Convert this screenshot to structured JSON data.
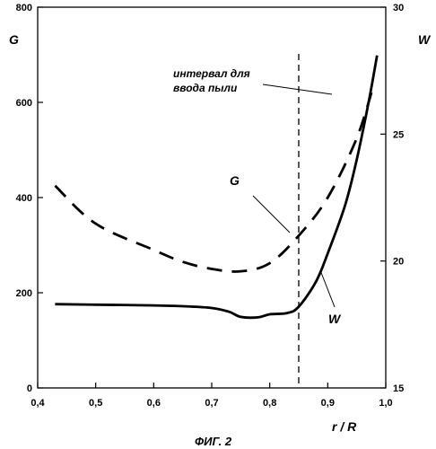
{
  "chart_data": {
    "type": "line",
    "caption": "ФИГ. 2",
    "xlabel": "r / R",
    "y_left_label": "G",
    "y_right_label": "W",
    "xlim": [
      0.4,
      1.0
    ],
    "y_left_lim": [
      0,
      800
    ],
    "y_right_lim": [
      15,
      30
    ],
    "x_ticks": [
      "0,4",
      "0,5",
      "0,6",
      "0,7",
      "0,8",
      "0,9",
      "1,0"
    ],
    "y_left_ticks": [
      "0",
      "200",
      "400",
      "600",
      "800"
    ],
    "y_right_ticks": [
      "15",
      "20",
      "25",
      "30"
    ],
    "grid": false,
    "vertical_line_x": 0.85,
    "annotation": [
      "интервал для",
      "ввода пыли"
    ],
    "series": [
      {
        "name": "G",
        "axis": "left",
        "style": "dashed",
        "x": [
          0.43,
          0.5,
          0.6,
          0.65,
          0.7,
          0.75,
          0.8,
          0.85,
          0.9,
          0.95,
          0.98
        ],
        "y": [
          425,
          345,
          290,
          265,
          250,
          245,
          262,
          320,
          400,
          525,
          640
        ]
      },
      {
        "name": "W",
        "axis": "right",
        "style": "solid",
        "x": [
          0.43,
          0.5,
          0.6,
          0.65,
          0.7,
          0.73,
          0.75,
          0.78,
          0.8,
          0.83,
          0.85,
          0.88,
          0.9,
          0.93,
          0.95,
          0.97,
          0.985
        ],
        "y": [
          18.3,
          18.28,
          18.25,
          18.22,
          18.15,
          18.0,
          17.8,
          17.78,
          17.9,
          17.95,
          18.2,
          19.2,
          20.3,
          22.2,
          24.0,
          26.2,
          28.1
        ]
      }
    ]
  }
}
